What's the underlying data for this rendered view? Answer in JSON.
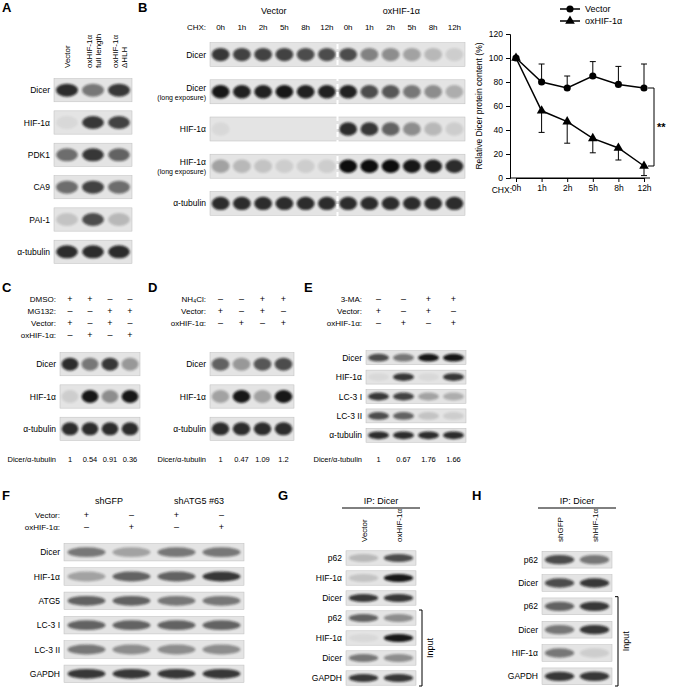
{
  "panels": [
    {
      "label": "A",
      "columns": [
        [
          "Vector"
        ],
        [
          "oxHIF-1α",
          "full length"
        ],
        [
          "oxHIF-1α",
          "ΔHLH"
        ]
      ],
      "rows": [
        {
          "label": "Dicer",
          "bands": [
            0.85,
            0.5,
            0.8
          ]
        },
        {
          "label": "HIF-1α",
          "bands": [
            0.05,
            0.8,
            0.75
          ]
        },
        {
          "label": "PDK1",
          "bands": [
            0.55,
            0.8,
            0.6
          ]
        },
        {
          "label": "CA9",
          "bands": [
            0.55,
            0.75,
            0.55
          ]
        },
        {
          "label": "PAI-1",
          "bands": [
            0.15,
            0.7,
            0.2
          ]
        },
        {
          "label": "α-tubulin",
          "bands": [
            0.85,
            0.85,
            0.85
          ]
        }
      ]
    },
    {
      "label": "B",
      "groups": [
        "Vector",
        "oxHIF-1α"
      ],
      "lane_prefix": "CHX:",
      "lanes": [
        "0h",
        "1h",
        "2h",
        "5h",
        "8h",
        "12h"
      ],
      "rows": [
        {
          "label": "Dicer",
          "bands": [
            0.8,
            0.75,
            0.75,
            0.75,
            0.7,
            0.7,
            0.7,
            0.45,
            0.4,
            0.3,
            0.2,
            0.1
          ]
        },
        {
          "label": "Dicer",
          "sublabel": "(long exposure)",
          "bands": [
            0.95,
            0.9,
            0.9,
            0.95,
            0.9,
            0.9,
            0.9,
            0.7,
            0.65,
            0.5,
            0.4,
            0.25
          ]
        },
        {
          "label": "HIF-1α",
          "bands": [
            0.05,
            0,
            0,
            0,
            0,
            0,
            0.85,
            0.8,
            0.6,
            0.4,
            0.2,
            0.1
          ]
        },
        {
          "label": "HIF-1α",
          "sublabel": "(long exposure)",
          "bands": [
            0.3,
            0.2,
            0.15,
            0.1,
            0.1,
            0.1,
            1,
            1,
            1,
            0.95,
            0.9,
            0.85
          ]
        },
        {
          "label": "α-tubulin",
          "bands": [
            0.85,
            0.85,
            0.85,
            0.85,
            0.85,
            0.85,
            0.85,
            0.85,
            0.85,
            0.85,
            0.85,
            0.85
          ]
        }
      ]
    },
    {
      "label": "C",
      "conditions": [
        {
          "label": "DMSO:",
          "signs": [
            "+",
            "+",
            "–",
            "–"
          ]
        },
        {
          "label": "MG132:",
          "signs": [
            "–",
            "–",
            "+",
            "+"
          ]
        },
        {
          "label": "Vector:",
          "signs": [
            "+",
            "–",
            "+",
            "–"
          ]
        },
        {
          "label": "oxHIF-1α:",
          "signs": [
            "–",
            "+",
            "–",
            "+"
          ]
        }
      ],
      "rows": [
        {
          "label": "Dicer",
          "bands": [
            0.85,
            0.5,
            0.8,
            0.35
          ]
        },
        {
          "label": "HIF-1α",
          "bands": [
            0.1,
            0.95,
            0.4,
            0.95
          ]
        },
        {
          "label": "α-tubulin",
          "bands": [
            0.85,
            0.85,
            0.85,
            0.85
          ]
        }
      ],
      "ratio_label": "Dicer/α-tubulin",
      "ratios": [
        1,
        0.54,
        0.91,
        0.36
      ]
    },
    {
      "label": "D",
      "conditions": [
        {
          "label": "NH₄Cl:",
          "signs": [
            "–",
            "–",
            "+",
            "+"
          ]
        },
        {
          "label": "Vector:",
          "signs": [
            "+",
            "–",
            "+",
            "–"
          ]
        },
        {
          "label": "oxHIF-1α:",
          "signs": [
            "–",
            "+",
            "–",
            "+"
          ]
        }
      ],
      "rows": [
        {
          "label": "Dicer",
          "bands": [
            0.6,
            0.35,
            0.65,
            0.7
          ]
        },
        {
          "label": "HIF-1α",
          "bands": [
            0.3,
            0.95,
            0.3,
            0.95
          ]
        },
        {
          "label": "α-tubulin",
          "bands": [
            0.85,
            0.85,
            0.85,
            0.85
          ]
        }
      ],
      "ratio_label": "Dicer/α-tubulin",
      "ratios": [
        1,
        0.47,
        1.09,
        1.2
      ]
    },
    {
      "label": "E",
      "conditions": [
        {
          "label": "3-MA:",
          "signs": [
            "–",
            "–",
            "+",
            "+"
          ]
        },
        {
          "label": "Vector:",
          "signs": [
            "+",
            "–",
            "+",
            "–"
          ]
        },
        {
          "label": "oxHIF-1α:",
          "signs": [
            "–",
            "+",
            "–",
            "+"
          ]
        }
      ],
      "rows": [
        {
          "label": "Dicer",
          "bands": [
            0.7,
            0.5,
            0.95,
            0.95
          ]
        },
        {
          "label": "HIF-1α",
          "bands": [
            0.05,
            0.8,
            0.05,
            0.8
          ]
        },
        {
          "label": "LC-3 I",
          "bands": [
            0.8,
            0.75,
            0.3,
            0.25
          ]
        },
        {
          "label": "LC-3 II",
          "bands": [
            0.7,
            0.6,
            0.15,
            0.1
          ]
        },
        {
          "label": "α-tubulin",
          "bands": [
            0.85,
            0.85,
            0.85,
            0.85
          ]
        }
      ],
      "ratio_label": "Dicer/α-tubulin",
      "ratios": [
        1,
        0.67,
        1.76,
        1.66
      ]
    },
    {
      "label": "F",
      "groups": [
        "shGFP",
        "shATG5 #63"
      ],
      "conditions": [
        {
          "label": "Vector:",
          "signs": [
            "+",
            "–",
            "+",
            "–"
          ]
        },
        {
          "label": "oxHIF-1α:",
          "signs": [
            "–",
            "+",
            "–",
            "+"
          ]
        }
      ],
      "rows": [
        {
          "label": "Dicer",
          "bands": [
            0.5,
            0.3,
            0.5,
            0.5
          ]
        },
        {
          "label": "HIF-1α",
          "bands": [
            0.3,
            0.6,
            0.6,
            0.8
          ]
        },
        {
          "label": "ATG5",
          "bands": [
            0.6,
            0.6,
            0.5,
            0.5
          ]
        },
        {
          "label": "LC-3 I",
          "bands": [
            0.6,
            0.6,
            0.6,
            0.6
          ]
        },
        {
          "label": "LC-3 II",
          "bands": [
            0.5,
            0.4,
            0.4,
            0.4
          ]
        },
        {
          "label": "GAPDH",
          "bands": [
            0.8,
            0.8,
            0.8,
            0.8
          ]
        }
      ]
    },
    {
      "label": "G",
      "ip": "IP: Dicer",
      "columns": [
        "Vector",
        "oxHIF-1α"
      ],
      "rows": [
        {
          "label": "p62",
          "bands": [
            0.2,
            0.7
          ]
        },
        {
          "label": "HIF-1α",
          "bands": [
            0.15,
            0.95
          ]
        },
        {
          "label": "Dicer",
          "bands": [
            0.8,
            0.8
          ]
        }
      ],
      "input_label": "Input",
      "input_rows": [
        {
          "label": "p62",
          "bands": [
            0.6,
            0.4
          ]
        },
        {
          "label": "HIF-1α",
          "bands": [
            0.05,
            0.95
          ]
        },
        {
          "label": "Dicer",
          "bands": [
            0.5,
            0.4
          ]
        },
        {
          "label": "GAPDH",
          "bands": [
            0.8,
            0.8
          ]
        }
      ]
    },
    {
      "label": "H",
      "ip": "IP: Dicer",
      "columns": [
        "shGFP",
        "shHIF-1α"
      ],
      "rows": [
        {
          "label": "p62",
          "bands": [
            0.7,
            0.5
          ]
        },
        {
          "label": "Dicer",
          "bands": [
            0.7,
            0.8
          ]
        }
      ],
      "input_label": "Input",
      "input_rows": [
        {
          "label": "p62",
          "bands": [
            0.6,
            0.8
          ]
        },
        {
          "label": "Dicer",
          "bands": [
            0.5,
            0.8
          ]
        },
        {
          "label": "HIF-1α",
          "bands": [
            0.5,
            0.1
          ]
        },
        {
          "label": "GAPDH",
          "bands": [
            0.8,
            0.8
          ]
        }
      ]
    }
  ],
  "chart_data": {
    "type": "line",
    "x_label": "CHX:",
    "y_label": "Relative Dicer protein content (%)",
    "categories": [
      "0h",
      "1h",
      "2h",
      "5h",
      "8h",
      "12h"
    ],
    "ylim": [
      0,
      120
    ],
    "yticks": [
      0,
      20,
      40,
      60,
      80,
      100,
      120
    ],
    "legend": "top",
    "series": [
      {
        "name": "Vector",
        "color": "#000000",
        "marker": "circle",
        "line_style": "solid",
        "values": [
          100,
          80,
          75,
          85,
          78,
          75
        ],
        "errors": [
          0,
          15,
          10,
          12,
          15,
          20
        ]
      },
      {
        "name": "oxHIF-1α",
        "color": "#000000",
        "marker": "triangle",
        "line_style": "solid",
        "values": [
          100,
          56,
          47,
          33,
          25,
          10
        ],
        "errors": [
          0,
          18,
          18,
          12,
          10,
          8
        ]
      }
    ],
    "annotations": [
      {
        "text": "**"
      }
    ]
  }
}
